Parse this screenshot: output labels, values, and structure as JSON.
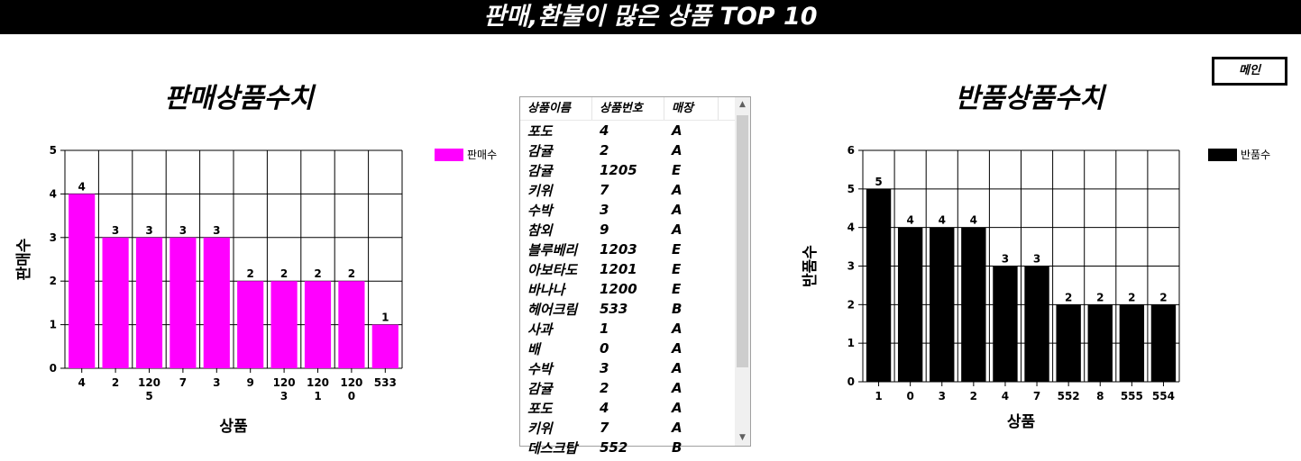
{
  "page": {
    "title": "판매,환불이 많은 상품 TOP 10",
    "main_button": "메인"
  },
  "product_list": {
    "headers": [
      "상품이름",
      "상품번호",
      "매장"
    ],
    "rows": [
      [
        "포도",
        "4",
        "A"
      ],
      [
        "감귤",
        "2",
        "A"
      ],
      [
        "감귤",
        "1205",
        "E"
      ],
      [
        "키위",
        "7",
        "A"
      ],
      [
        "수박",
        "3",
        "A"
      ],
      [
        "참외",
        "9",
        "A"
      ],
      [
        "블루베리",
        "1203",
        "E"
      ],
      [
        "아보타도",
        "1201",
        "E"
      ],
      [
        "바나나",
        "1200",
        "E"
      ],
      [
        "헤어크림",
        "533",
        "B"
      ],
      [
        "사과",
        "1",
        "A"
      ],
      [
        "배",
        "0",
        "A"
      ],
      [
        "수박",
        "3",
        "A"
      ],
      [
        "감귤",
        "2",
        "A"
      ],
      [
        "포도",
        "4",
        "A"
      ],
      [
        "키위",
        "7",
        "A"
      ],
      [
        "데스크탑",
        "552",
        "B"
      ]
    ]
  },
  "chart_data": [
    {
      "type": "bar",
      "title": "판매상품수치",
      "xlabel": "상품",
      "ylabel": "판매수",
      "categories": [
        "4",
        "2",
        "1205",
        "7",
        "3",
        "9",
        "1203",
        "1201",
        "1200",
        "533"
      ],
      "category_labels": [
        [
          "4"
        ],
        [
          "2"
        ],
        [
          "120",
          "5"
        ],
        [
          "7"
        ],
        [
          "3"
        ],
        [
          "9"
        ],
        [
          "120",
          "3"
        ],
        [
          "120",
          "1"
        ],
        [
          "120",
          "0"
        ],
        [
          "533"
        ]
      ],
      "series": [
        {
          "name": "판매수",
          "values": [
            4,
            3,
            3,
            3,
            3,
            2,
            2,
            2,
            2,
            1
          ],
          "color": "#ff00ff"
        }
      ],
      "ylim": [
        0,
        5
      ],
      "yticks": [
        0,
        1,
        2,
        3,
        4,
        5
      ],
      "grid": true,
      "legend_position": "right"
    },
    {
      "type": "bar",
      "title": "반품상품수치",
      "xlabel": "상품",
      "ylabel": "반품수",
      "categories": [
        "1",
        "0",
        "3",
        "2",
        "4",
        "7",
        "552",
        "8",
        "555",
        "554"
      ],
      "category_labels": [
        [
          "1"
        ],
        [
          "0"
        ],
        [
          "3"
        ],
        [
          "2"
        ],
        [
          "4"
        ],
        [
          "7"
        ],
        [
          "552"
        ],
        [
          "8"
        ],
        [
          "555"
        ],
        [
          "554"
        ]
      ],
      "series": [
        {
          "name": "반품수",
          "values": [
            5,
            4,
            4,
            4,
            3,
            3,
            2,
            2,
            2,
            2
          ],
          "color": "#000000"
        }
      ],
      "ylim": [
        0,
        6
      ],
      "yticks": [
        0,
        1,
        2,
        3,
        4,
        5,
        6
      ],
      "grid": true,
      "legend_position": "right"
    }
  ]
}
